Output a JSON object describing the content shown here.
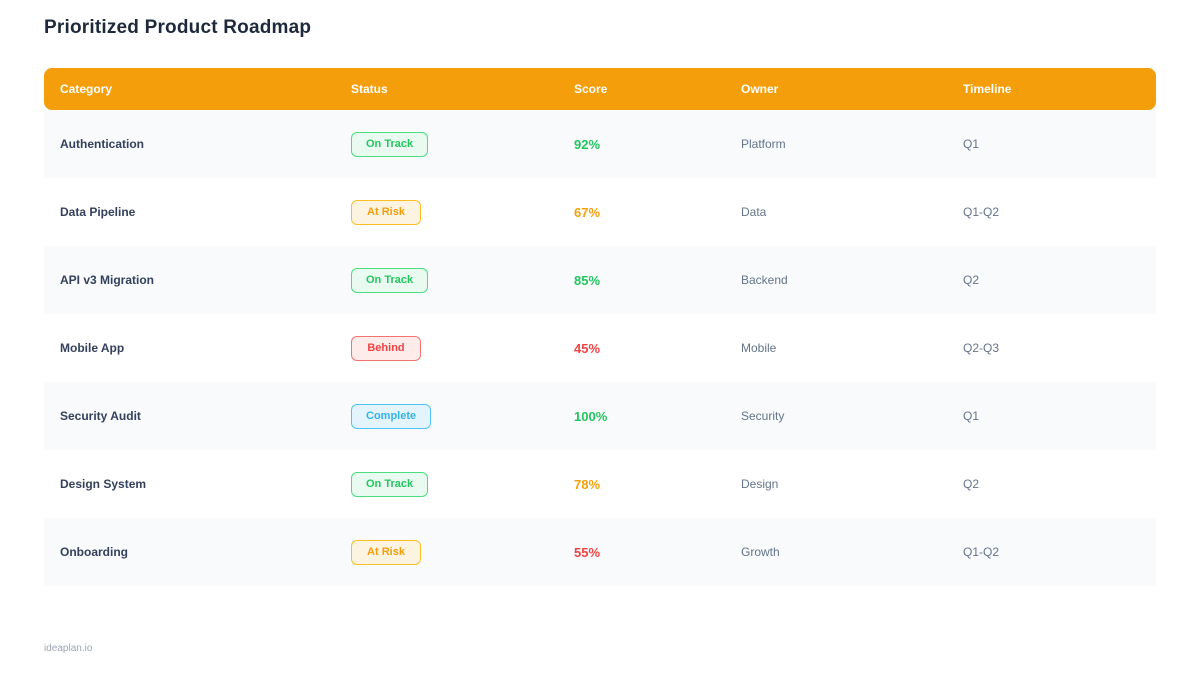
{
  "page": {
    "title": "Prioritized Product Roadmap",
    "footer": "ideaplan.io"
  },
  "colors": {
    "header_bg": "#f59e0b",
    "header_text": "#ffffff",
    "row_alt_bg": "#f8fafc",
    "row_bg": "#ffffff",
    "category_text": "#33415c",
    "muted_text": "#64748b",
    "score_green": "#22c55e",
    "score_orange": "#f5a10b",
    "score_red": "#ef4444"
  },
  "status_variants": {
    "on-track": {
      "label": "On Track",
      "text": "#22c55e",
      "bg": "#e9faf0",
      "border": "#4ade80"
    },
    "at-risk": {
      "label": "At Risk",
      "text": "#f59e0b",
      "bg": "#fdf3e1",
      "border": "#fbbf24"
    },
    "behind": {
      "label": "Behind",
      "text": "#ef4444",
      "bg": "#fdecea",
      "border": "#f87171"
    },
    "complete": {
      "label": "Complete",
      "text": "#33b4e9",
      "bg": "#e4f4fc",
      "border": "#4fc3f7"
    }
  },
  "table": {
    "columns": [
      "Category",
      "Status",
      "Score",
      "Owner",
      "Timeline"
    ],
    "rows": [
      {
        "category": "Authentication",
        "status": "On Track",
        "status_variant": "on-track",
        "score": "92%",
        "score_color": "#22c55e",
        "owner": "Platform",
        "timeline": "Q1"
      },
      {
        "category": "Data Pipeline",
        "status": "At Risk",
        "status_variant": "at-risk",
        "score": "67%",
        "score_color": "#f5a10b",
        "owner": "Data",
        "timeline": "Q1-Q2"
      },
      {
        "category": "API v3 Migration",
        "status": "On Track",
        "status_variant": "on-track",
        "score": "85%",
        "score_color": "#22c55e",
        "owner": "Backend",
        "timeline": "Q2"
      },
      {
        "category": "Mobile App",
        "status": "Behind",
        "status_variant": "behind",
        "score": "45%",
        "score_color": "#ef4444",
        "owner": "Mobile",
        "timeline": "Q2-Q3"
      },
      {
        "category": "Security Audit",
        "status": "Complete",
        "status_variant": "complete",
        "score": "100%",
        "score_color": "#22c55e",
        "owner": "Security",
        "timeline": "Q1"
      },
      {
        "category": "Design System",
        "status": "On Track",
        "status_variant": "on-track",
        "score": "78%",
        "score_color": "#f5a10b",
        "owner": "Design",
        "timeline": "Q2"
      },
      {
        "category": "Onboarding",
        "status": "At Risk",
        "status_variant": "at-risk",
        "score": "55%",
        "score_color": "#ef4444",
        "owner": "Growth",
        "timeline": "Q1-Q2"
      }
    ]
  }
}
